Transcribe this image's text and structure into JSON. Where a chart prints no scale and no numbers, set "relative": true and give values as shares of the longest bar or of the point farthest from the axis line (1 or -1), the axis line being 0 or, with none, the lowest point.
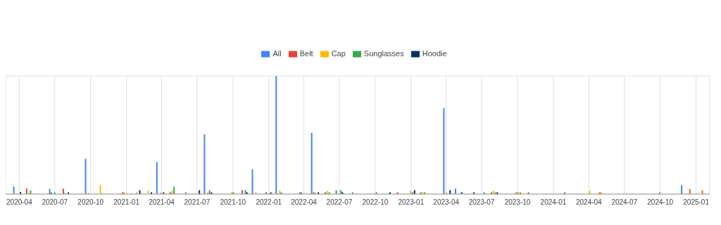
{
  "chart_data": {
    "type": "bar",
    "relative": true,
    "legend": "top",
    "grid": true,
    "xlim": [
      "2020-02-26",
      "2025-02-05"
    ],
    "xticks": [
      "2020-04",
      "2020-07",
      "2020-10",
      "2021-01",
      "2021-04",
      "2021-07",
      "2021-10",
      "2022-01",
      "2022-04",
      "2022-07",
      "2022-10",
      "2023-01",
      "2023-04",
      "2023-07",
      "2023-10",
      "2024-01",
      "2024-04",
      "2024-07",
      "2024-10",
      "2025-01"
    ],
    "series": [
      {
        "name": "All",
        "color": "#4285f4",
        "x": [
          "2020-03-18",
          "2020-06-18",
          "2020-09-18",
          "2021-03-20",
          "2021-07-20",
          "2021-11-20",
          "2022-01-20",
          "2022-03-22",
          "2022-04-21",
          "2022-06-23",
          "2023-03-26",
          "2023-04-25",
          "2024-11-25"
        ],
        "values": [
          0.063,
          0.044,
          0.299,
          0.27,
          0.506,
          0.209,
          1,
          0.015,
          0.519,
          0.033,
          0.728,
          0.046,
          0.075
        ]
      },
      {
        "name": "Belt",
        "color": "#ea4335",
        "x": [
          "2020-04-20",
          "2020-06-22",
          "2020-07-23",
          "2020-12-22",
          "2021-04-23",
          "2021-10-25",
          "2021-12-25",
          "2022-03-26",
          "2022-04-26",
          "2022-05-26",
          "2022-11-27",
          "2023-01-26",
          "2023-07-26",
          "2023-09-28",
          "2023-10-29",
          "2024-01-30",
          "2024-04-29"
        ],
        "values": [
          0.048,
          0.015,
          0.046,
          0.015,
          0.015,
          0.033,
          0.015,
          0.015,
          0.015,
          0.015,
          0.015,
          0.015,
          0.015,
          0.015,
          0.015,
          0.015,
          0.015
        ]
      },
      {
        "name": "Cap",
        "color": "#fbbc04",
        "x": [
          "2020-04-25",
          "2020-07-27",
          "2020-09-26",
          "2020-10-26",
          "2020-12-26",
          "2021-01-27",
          "2021-02-26",
          "2021-03-29",
          "2021-04-28",
          "2021-07-28",
          "2021-09-28",
          "2021-11-29",
          "2022-01-29",
          "2022-05-01",
          "2022-05-31",
          "2022-12-31",
          "2023-01-31",
          "2023-04-02",
          "2023-07-31",
          "2023-10-03",
          "2024-04-03",
          "2024-05-03"
        ],
        "values": [
          0.01,
          0.01,
          0.01,
          0.075,
          0.015,
          0.015,
          0.029,
          0.015,
          0.029,
          0.015,
          0.015,
          0.015,
          0.029,
          0.015,
          0.029,
          0.029,
          0.015,
          0.015,
          0.029,
          0.015,
          0.029,
          0.015
        ]
      },
      {
        "name": "Sunglasses",
        "color": "#34a853",
        "x": [
          "2020-04-30",
          "2020-07-01",
          "2021-05-03",
          "2021-06-02",
          "2021-08-02",
          "2021-10-02",
          "2021-11-02",
          "2022-02-02",
          "2022-06-05",
          "2022-07-05",
          "2022-08-04",
          "2022-10-04",
          "2023-01-05",
          "2023-02-05",
          "2023-07-07",
          "2023-08-05",
          "2023-10-08"
        ],
        "values": [
          0.03,
          0.015,
          0.063,
          0.015,
          0.033,
          0.015,
          0.033,
          0.015,
          0.015,
          0.033,
          0.015,
          0.015,
          0.015,
          0.015,
          0.015,
          0.015,
          0.015
        ]
      },
      {
        "name": "Hoodie",
        "color": "#0b2e6b",
        "x": [
          "2020-04-04",
          "2020-08-05",
          "2021-02-04",
          "2021-03-06",
          "2021-04-06",
          "2021-07-07",
          "2021-08-07",
          "2021-11-06",
          "2022-01-06",
          "2022-05-08",
          "2022-07-09",
          "2022-11-08",
          "2023-01-10",
          "2023-04-11",
          "2023-05-11",
          "2023-06-11",
          "2023-08-10"
        ],
        "values": [
          0.017,
          0.015,
          0.033,
          0.015,
          0.015,
          0.033,
          0.015,
          0.015,
          0.015,
          0.015,
          0.015,
          0.015,
          0.033,
          0.033,
          0.015,
          0.015,
          0.015
        ]
      },
      {
        "color": "#f26522",
        "x": [
          "2024-09-30",
          "2024-12-16",
          "2025-01-17"
        ],
        "values": [
          0.015,
          0.044,
          0.03
        ]
      }
    ]
  }
}
